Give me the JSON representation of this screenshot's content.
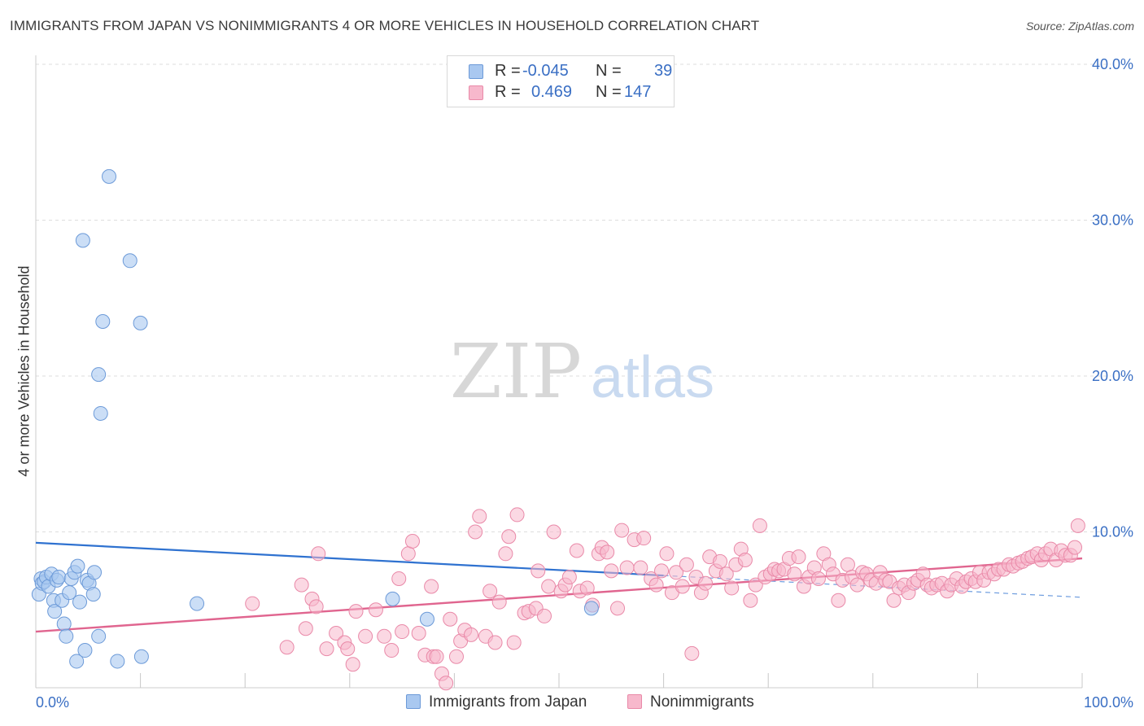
{
  "header": {
    "title": "IMMIGRANTS FROM JAPAN VS NONIMMIGRANTS 4 OR MORE VEHICLES IN HOUSEHOLD CORRELATION CHART",
    "source": "Source: ZipAtlas.com"
  },
  "watermark": {
    "zip": "ZIP",
    "atlas": "atlas"
  },
  "legend": {
    "rows": [
      {
        "r_label": "R =",
        "r_value": "-0.045",
        "n_label": "N =",
        "n_value": "39"
      },
      {
        "r_label": "R =",
        "r_value": "0.469",
        "n_label": "N =",
        "n_value": "147"
      }
    ]
  },
  "colors": {
    "japan_fill": "#a9c8f0",
    "japan_stroke": "#6c9ad8",
    "japan_line": "#2f72d0",
    "nonimm_fill": "#f7b8cc",
    "nonimm_stroke": "#e989a8",
    "nonimm_line": "#e0658f",
    "tick_label": "#3a6fc4"
  },
  "chart_data": {
    "type": "scatter",
    "title": "IMMIGRANTS FROM JAPAN VS NONIMMIGRANTS 4 OR MORE VEHICLES IN HOUSEHOLD CORRELATION CHART",
    "xlabel": "",
    "ylabel": "4 or more Vehicles in Household",
    "xlim": [
      0,
      100
    ],
    "ylim": [
      0,
      40
    ],
    "x_tick_labels": [
      "0.0%",
      "100.0%"
    ],
    "y_tick_labels": [
      "10.0%",
      "20.0%",
      "30.0%",
      "40.0%"
    ],
    "y_ticks": [
      10,
      20,
      30,
      40
    ],
    "grid": true,
    "legend_placement": "top-center",
    "series": [
      {
        "name": "Immigrants from Japan",
        "r": -0.045,
        "n": 39,
        "trend": {
          "x0": 0,
          "y0": 9.3,
          "x1": 100,
          "y1": 5.8,
          "solid_until_x": 60
        },
        "points": [
          [
            0.3,
            6.0
          ],
          [
            0.5,
            7.0
          ],
          [
            0.6,
            6.7
          ],
          [
            0.8,
            6.8
          ],
          [
            1.0,
            7.1
          ],
          [
            1.2,
            6.5
          ],
          [
            1.5,
            7.3
          ],
          [
            1.7,
            5.6
          ],
          [
            1.8,
            4.9
          ],
          [
            2.0,
            6.9
          ],
          [
            2.2,
            7.1
          ],
          [
            2.5,
            5.6
          ],
          [
            2.7,
            4.1
          ],
          [
            2.9,
            3.3
          ],
          [
            3.2,
            6.1
          ],
          [
            3.4,
            7.0
          ],
          [
            3.7,
            7.4
          ],
          [
            3.9,
            1.7
          ],
          [
            4.0,
            7.8
          ],
          [
            4.2,
            5.5
          ],
          [
            4.5,
            28.7
          ],
          [
            4.7,
            2.4
          ],
          [
            4.9,
            6.9
          ],
          [
            5.1,
            6.7
          ],
          [
            5.5,
            6.0
          ],
          [
            5.6,
            7.4
          ],
          [
            6.0,
            3.3
          ],
          [
            6.2,
            17.6
          ],
          [
            6.4,
            23.5
          ],
          [
            6.0,
            20.1
          ],
          [
            7.0,
            32.8
          ],
          [
            7.8,
            1.7
          ],
          [
            9.0,
            27.4
          ],
          [
            10.0,
            23.4
          ],
          [
            10.1,
            2.0
          ],
          [
            15.4,
            5.4
          ],
          [
            34.1,
            5.7
          ],
          [
            37.4,
            4.4
          ],
          [
            53.1,
            5.1
          ]
        ]
      },
      {
        "name": "Nonimmigrants",
        "r": 0.469,
        "n": 147,
        "trend": {
          "x0": 0,
          "y0": 3.6,
          "x1": 100,
          "y1": 8.3
        },
        "points": [
          [
            20.7,
            5.4
          ],
          [
            24.0,
            2.6
          ],
          [
            25.4,
            6.6
          ],
          [
            25.8,
            3.8
          ],
          [
            26.4,
            5.7
          ],
          [
            26.8,
            5.2
          ],
          [
            27.0,
            8.6
          ],
          [
            27.8,
            2.5
          ],
          [
            28.7,
            3.5
          ],
          [
            29.5,
            2.9
          ],
          [
            29.8,
            2.5
          ],
          [
            30.3,
            1.5
          ],
          [
            30.6,
            4.9
          ],
          [
            31.5,
            3.3
          ],
          [
            32.5,
            5.0
          ],
          [
            33.3,
            3.3
          ],
          [
            34.0,
            2.4
          ],
          [
            34.7,
            7.0
          ],
          [
            35.0,
            3.6
          ],
          [
            35.6,
            8.6
          ],
          [
            36.0,
            9.4
          ],
          [
            36.6,
            3.5
          ],
          [
            37.2,
            2.1
          ],
          [
            37.8,
            6.5
          ],
          [
            38.0,
            2.0
          ],
          [
            38.3,
            2.0
          ],
          [
            38.8,
            0.9
          ],
          [
            39.2,
            0.3
          ],
          [
            39.6,
            4.4
          ],
          [
            40.2,
            2.0
          ],
          [
            40.6,
            3.0
          ],
          [
            41.0,
            3.7
          ],
          [
            41.6,
            3.4
          ],
          [
            42.0,
            10.0
          ],
          [
            42.4,
            11.0
          ],
          [
            43.0,
            3.3
          ],
          [
            43.4,
            6.2
          ],
          [
            43.9,
            2.9
          ],
          [
            44.3,
            5.5
          ],
          [
            44.9,
            8.6
          ],
          [
            45.2,
            9.7
          ],
          [
            45.7,
            2.9
          ],
          [
            46.0,
            11.1
          ],
          [
            46.7,
            4.8
          ],
          [
            47.1,
            4.9
          ],
          [
            47.8,
            5.1
          ],
          [
            48.0,
            7.5
          ],
          [
            48.6,
            4.6
          ],
          [
            49.0,
            6.5
          ],
          [
            49.5,
            10.0
          ],
          [
            50.2,
            6.2
          ],
          [
            50.6,
            6.6
          ],
          [
            51.0,
            7.1
          ],
          [
            51.7,
            8.8
          ],
          [
            52.0,
            6.2
          ],
          [
            52.7,
            6.4
          ],
          [
            53.2,
            5.3
          ],
          [
            53.8,
            8.6
          ],
          [
            54.1,
            9.0
          ],
          [
            54.6,
            8.7
          ],
          [
            55.0,
            7.5
          ],
          [
            55.6,
            5.1
          ],
          [
            56.0,
            10.1
          ],
          [
            56.5,
            7.7
          ],
          [
            57.2,
            9.5
          ],
          [
            57.8,
            7.7
          ],
          [
            58.1,
            9.6
          ],
          [
            58.8,
            7.0
          ],
          [
            59.3,
            6.6
          ],
          [
            59.8,
            7.5
          ],
          [
            60.3,
            8.6
          ],
          [
            60.8,
            6.1
          ],
          [
            61.2,
            7.4
          ],
          [
            61.8,
            6.5
          ],
          [
            62.2,
            7.9
          ],
          [
            62.7,
            2.2
          ],
          [
            63.1,
            7.1
          ],
          [
            63.6,
            6.1
          ],
          [
            64.0,
            6.7
          ],
          [
            64.4,
            8.4
          ],
          [
            65.0,
            7.5
          ],
          [
            65.4,
            8.1
          ],
          [
            66.0,
            7.3
          ],
          [
            66.5,
            6.4
          ],
          [
            66.9,
            7.9
          ],
          [
            67.4,
            8.9
          ],
          [
            67.8,
            8.2
          ],
          [
            68.3,
            5.6
          ],
          [
            68.8,
            6.6
          ],
          [
            69.2,
            10.4
          ],
          [
            69.7,
            7.1
          ],
          [
            70.2,
            7.3
          ],
          [
            70.6,
            7.6
          ],
          [
            71.0,
            7.5
          ],
          [
            71.5,
            7.6
          ],
          [
            72.0,
            8.3
          ],
          [
            72.5,
            7.3
          ],
          [
            72.9,
            8.4
          ],
          [
            73.4,
            6.5
          ],
          [
            73.9,
            7.1
          ],
          [
            74.4,
            7.7
          ],
          [
            74.8,
            7.0
          ],
          [
            75.3,
            8.6
          ],
          [
            75.8,
            7.9
          ],
          [
            76.2,
            7.3
          ],
          [
            76.7,
            5.6
          ],
          [
            77.1,
            6.9
          ],
          [
            77.6,
            7.9
          ],
          [
            78.0,
            7.1
          ],
          [
            78.5,
            6.6
          ],
          [
            79.0,
            7.4
          ],
          [
            79.4,
            7.3
          ],
          [
            79.8,
            6.9
          ],
          [
            80.3,
            6.7
          ],
          [
            80.7,
            7.4
          ],
          [
            81.2,
            6.9
          ],
          [
            81.6,
            6.8
          ],
          [
            82.0,
            5.6
          ],
          [
            82.5,
            6.4
          ],
          [
            83.0,
            6.6
          ],
          [
            83.4,
            6.1
          ],
          [
            83.9,
            6.7
          ],
          [
            84.3,
            6.9
          ],
          [
            84.8,
            7.3
          ],
          [
            85.2,
            6.6
          ],
          [
            85.6,
            6.4
          ],
          [
            86.1,
            6.6
          ],
          [
            86.6,
            6.7
          ],
          [
            87.1,
            6.2
          ],
          [
            87.5,
            6.6
          ],
          [
            88.0,
            7.0
          ],
          [
            88.5,
            6.5
          ],
          [
            88.9,
            6.8
          ],
          [
            89.4,
            7.0
          ],
          [
            89.8,
            6.8
          ],
          [
            90.2,
            7.4
          ],
          [
            90.6,
            6.9
          ],
          [
            91.1,
            7.4
          ],
          [
            91.6,
            7.3
          ],
          [
            92.0,
            7.6
          ],
          [
            92.5,
            7.6
          ],
          [
            93.0,
            7.9
          ],
          [
            93.4,
            7.8
          ],
          [
            93.9,
            8.0
          ],
          [
            94.3,
            8.1
          ],
          [
            94.8,
            8.3
          ],
          [
            95.2,
            8.4
          ],
          [
            95.7,
            8.6
          ],
          [
            96.1,
            8.2
          ],
          [
            96.5,
            8.6
          ],
          [
            97.0,
            8.9
          ],
          [
            97.5,
            8.2
          ],
          [
            98.0,
            8.8
          ],
          [
            98.4,
            8.5
          ],
          [
            98.9,
            8.5
          ],
          [
            99.3,
            9.0
          ],
          [
            99.6,
            10.4
          ]
        ]
      }
    ]
  },
  "bottom_legend": [
    "Immigrants from Japan",
    "Nonimmigrants"
  ]
}
